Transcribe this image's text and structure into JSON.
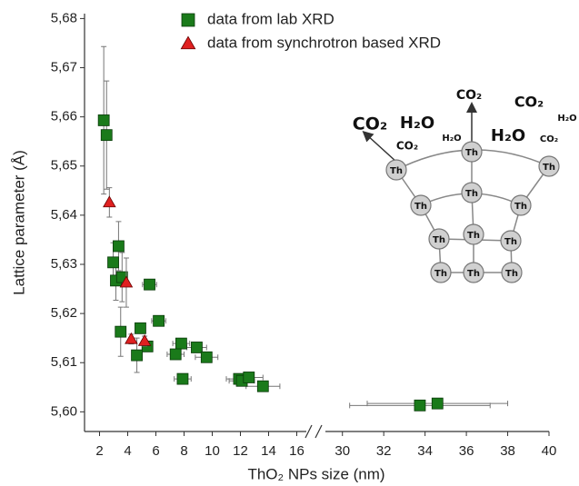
{
  "chart_data": {
    "type": "scatter",
    "xlabel": "ThO₂ NPs size (nm)",
    "ylabel": "Lattice parameter  (Å)",
    "xlim_segments": [
      [
        1,
        17
      ],
      [
        29,
        40
      ]
    ],
    "xticks": [
      2,
      4,
      6,
      8,
      10,
      12,
      14,
      16,
      30,
      32,
      34,
      36,
      38,
      40
    ],
    "ylim": [
      5.596,
      5.681
    ],
    "yticks": [
      {
        "value": 5.6,
        "label": "5,60"
      },
      {
        "value": 5.61,
        "label": "5,61"
      },
      {
        "value": 5.62,
        "label": "5,62"
      },
      {
        "value": 5.63,
        "label": "5,63"
      },
      {
        "value": 5.64,
        "label": "5,64"
      },
      {
        "value": 5.65,
        "label": "5,65"
      },
      {
        "value": 5.66,
        "label": "5,66"
      },
      {
        "value": 5.67,
        "label": "5,67"
      },
      {
        "value": 5.68,
        "label": "5,68"
      }
    ],
    "legend": "top",
    "series": [
      {
        "name": "data from lab XRD",
        "color": "#1a7a1a",
        "marker": "square",
        "x": [
          2.3,
          2.5,
          2.97,
          3.16,
          3.35,
          3.6,
          3.5,
          5.55,
          4.9,
          6.2,
          5.4,
          4.65,
          7.8,
          7.4,
          8.9,
          9.6,
          7.9,
          11.9,
          12.1,
          12.6,
          13.6,
          33.75,
          34.6
        ],
        "values": [
          5.6593,
          5.6563,
          5.6304,
          5.6267,
          5.6337,
          5.6274,
          5.6163,
          5.6259,
          5.617,
          5.6185,
          5.6133,
          5.6115,
          5.6139,
          5.6117,
          5.6131,
          5.6111,
          5.6067,
          5.6067,
          5.6063,
          5.607,
          5.6052,
          5.6013,
          5.6017
        ],
        "xerr": [
          0.2,
          0.2,
          0.2,
          0.2,
          0.2,
          0.2,
          0.3,
          0.5,
          0.3,
          0.5,
          0.3,
          0.3,
          0.6,
          0.6,
          0.7,
          0.8,
          0.6,
          0.9,
          0.9,
          1.0,
          1.2,
          3.4,
          3.4
        ],
        "yerr": [
          0.015,
          0.011,
          0.004,
          0.004,
          0.005,
          0.005,
          0.005,
          0.001,
          0.001,
          0.001,
          0.001,
          0.0035,
          0.001,
          0.001,
          0.001,
          0.001,
          0.001,
          0.001,
          0.001,
          0.001,
          0.001,
          0.0005,
          0.0005
        ]
      },
      {
        "name": "data from synchrotron based XRD",
        "color": "#e02020",
        "marker": "triangle",
        "x": [
          2.7,
          3.9,
          4.25,
          5.2
        ],
        "values": [
          5.6426,
          5.6263,
          5.6148,
          5.6144
        ],
        "xerr": [
          0.1,
          0.1,
          0.1,
          0.1
        ],
        "yerr": [
          0.003,
          0.005,
          0.001,
          0.001
        ]
      }
    ],
    "inset": {
      "co2": "CO₂",
      "h2o": "H₂O",
      "atom": "Th"
    }
  }
}
